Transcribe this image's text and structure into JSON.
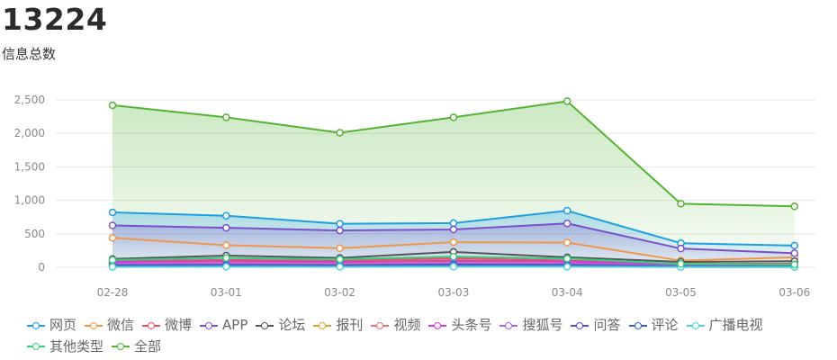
{
  "header": {
    "total": "13224",
    "total_label": "信息总数"
  },
  "chart_data": {
    "type": "line",
    "categories": [
      "02-28",
      "03-01",
      "03-02",
      "03-03",
      "03-04",
      "03-05",
      "03-06"
    ],
    "ylim": [
      0,
      2500
    ],
    "yticks": [
      0,
      500,
      1000,
      1500,
      2000,
      2500
    ],
    "ytick_labels": [
      "0",
      "500",
      "1,000",
      "1,500",
      "2,000",
      "2,500"
    ],
    "grid": true,
    "legend_position": "bottom",
    "series": [
      {
        "name": "网页",
        "color": "#1d9fe0",
        "area": true,
        "values": [
          820,
          770,
          650,
          660,
          845,
          360,
          325
        ]
      },
      {
        "name": "微信",
        "color": "#f0964a",
        "area": false,
        "values": [
          440,
          330,
          285,
          375,
          370,
          100,
          150
        ]
      },
      {
        "name": "微博",
        "color": "#e8505b",
        "area": false,
        "values": [
          90,
          110,
          95,
          135,
          100,
          50,
          55
        ]
      },
      {
        "name": "APP",
        "color": "#7b4fc9",
        "area": true,
        "values": [
          625,
          590,
          550,
          565,
          655,
          280,
          210
        ]
      },
      {
        "name": "论坛",
        "color": "#555555",
        "area": false,
        "values": [
          125,
          175,
          140,
          230,
          150,
          80,
          90
        ]
      },
      {
        "name": "报刊",
        "color": "#e0a030",
        "area": false,
        "values": [
          60,
          70,
          55,
          75,
          65,
          30,
          35
        ]
      },
      {
        "name": "视频",
        "color": "#e57373",
        "area": false,
        "values": [
          70,
          85,
          75,
          110,
          80,
          40,
          45
        ]
      },
      {
        "name": "头条号",
        "color": "#d63bd6",
        "area": false,
        "values": [
          80,
          95,
          80,
          95,
          90,
          35,
          40
        ]
      },
      {
        "name": "搜狐号",
        "color": "#b060e0",
        "area": false,
        "values": [
          50,
          55,
          45,
          60,
          55,
          25,
          25
        ]
      },
      {
        "name": "问答",
        "color": "#5b4fc9",
        "area": false,
        "values": [
          30,
          35,
          30,
          40,
          35,
          15,
          15
        ]
      },
      {
        "name": "评论",
        "color": "#3a63c4",
        "area": false,
        "values": [
          20,
          25,
          20,
          30,
          25,
          10,
          10
        ]
      },
      {
        "name": "广播电视",
        "color": "#4fd1d9",
        "area": false,
        "values": [
          5,
          8,
          6,
          10,
          8,
          3,
          4
        ]
      },
      {
        "name": "其他类型",
        "color": "#2fcf7f",
        "area": false,
        "values": [
          110,
          140,
          120,
          160,
          130,
          50,
          40
        ]
      },
      {
        "name": "全部",
        "color": "#53b335",
        "area": true,
        "values": [
          2420,
          2240,
          2010,
          2240,
          2480,
          950,
          910
        ]
      }
    ]
  }
}
